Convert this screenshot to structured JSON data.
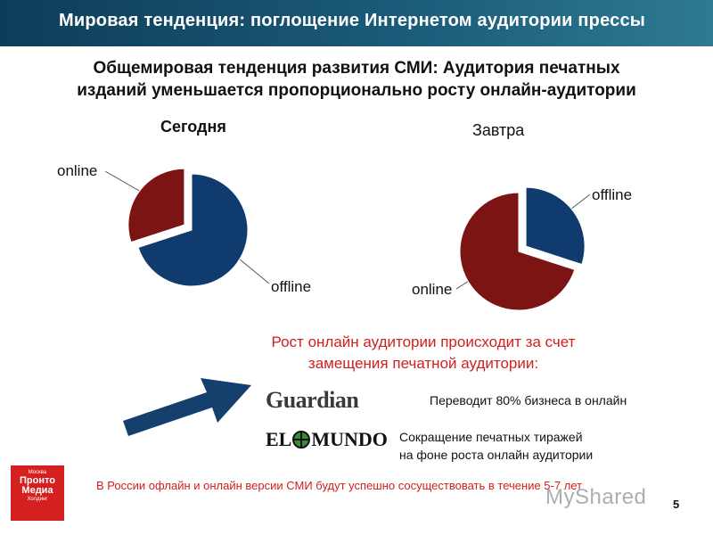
{
  "header": {
    "title": "Мировая тенденция: поглощение Интернетом аудитории прессы"
  },
  "headline": {
    "line1": "Общемировая тенденция  развития СМИ: Аудитория печатных",
    "line2": "изданий уменьшается пропорционально росту онлайн-аудитории"
  },
  "chart_data": [
    {
      "type": "pie",
      "title": "Сегодня",
      "labels": [
        "online",
        "offline"
      ],
      "values": [
        30,
        70
      ],
      "colors": [
        "#7d1414",
        "#0f3b6f"
      ],
      "exploded": "online"
    },
    {
      "type": "pie",
      "title": "Завтра",
      "labels": [
        "offline",
        "online"
      ],
      "values": [
        30,
        70
      ],
      "colors": [
        "#0f3b6f",
        "#7d1414"
      ],
      "exploded": "offline"
    }
  ],
  "growth": {
    "line1": "Рост онлайн аудитории происходит за счет",
    "line2": "замещения печатной аудитории:"
  },
  "logos": {
    "guardian": "Guardian",
    "elmundo_left": "EL",
    "elmundo_right": "MUNDO"
  },
  "desc": {
    "guardian": "Переводит 80% бизнеса в онлайн",
    "elmundo_line1": "Сокращение печатных тиражей",
    "elmundo_line2": "на фоне роста онлайн аудитории"
  },
  "footer": {
    "russia_note": "В России офлайн и онлайн версии СМИ будут успешно сосуществовать в течение 5-7 лет",
    "side_logo_top": "Москва",
    "side_logo_line1": "Пронто",
    "side_logo_line2": "Медиа",
    "side_logo_bottom": "Холдинг",
    "watermark": "MyShared",
    "page_number": "5"
  },
  "colors": {
    "online": "#7d1414",
    "offline": "#0f3b6f",
    "accent_red": "#d02020",
    "arrow": "#15406e"
  }
}
